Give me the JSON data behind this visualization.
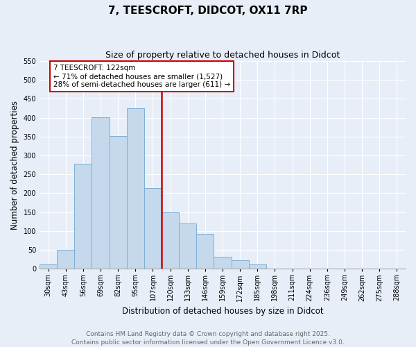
{
  "title": "7, TEESCROFT, DIDCOT, OX11 7RP",
  "subtitle": "Size of property relative to detached houses in Didcot",
  "xlabel": "Distribution of detached houses by size in Didcot",
  "ylabel": "Number of detached properties",
  "bar_labels": [
    "30sqm",
    "43sqm",
    "56sqm",
    "69sqm",
    "82sqm",
    "95sqm",
    "107sqm",
    "120sqm",
    "133sqm",
    "146sqm",
    "159sqm",
    "172sqm",
    "185sqm",
    "198sqm",
    "211sqm",
    "224sqm",
    "236sqm",
    "249sqm",
    "262sqm",
    "275sqm",
    "288sqm"
  ],
  "bar_heights": [
    12,
    50,
    278,
    402,
    352,
    425,
    213,
    150,
    120,
    93,
    31,
    22,
    12,
    0,
    0,
    0,
    0,
    0,
    0,
    0,
    0
  ],
  "bar_color": "#c6d9ec",
  "bar_edge_color": "#7bafd4",
  "bg_color": "#e8eef8",
  "grid_color": "#ffffff",
  "vline_color": "#cc0000",
  "annotation_title": "7 TEESCROFT: 122sqm",
  "annotation_line1": "← 71% of detached houses are smaller (1,527)",
  "annotation_line2": "28% of semi-detached houses are larger (611) →",
  "annotation_box_color": "#cc0000",
  "ylim": [
    0,
    550
  ],
  "yticks": [
    0,
    50,
    100,
    150,
    200,
    250,
    300,
    350,
    400,
    450,
    500,
    550
  ],
  "footer_line1": "Contains HM Land Registry data © Crown copyright and database right 2025.",
  "footer_line2": "Contains public sector information licensed under the Open Government Licence v3.0.",
  "title_fontsize": 11,
  "subtitle_fontsize": 9,
  "axis_label_fontsize": 8.5,
  "tick_fontsize": 7,
  "annotation_fontsize": 7.5,
  "footer_fontsize": 6.5,
  "vline_bar_index": 7
}
